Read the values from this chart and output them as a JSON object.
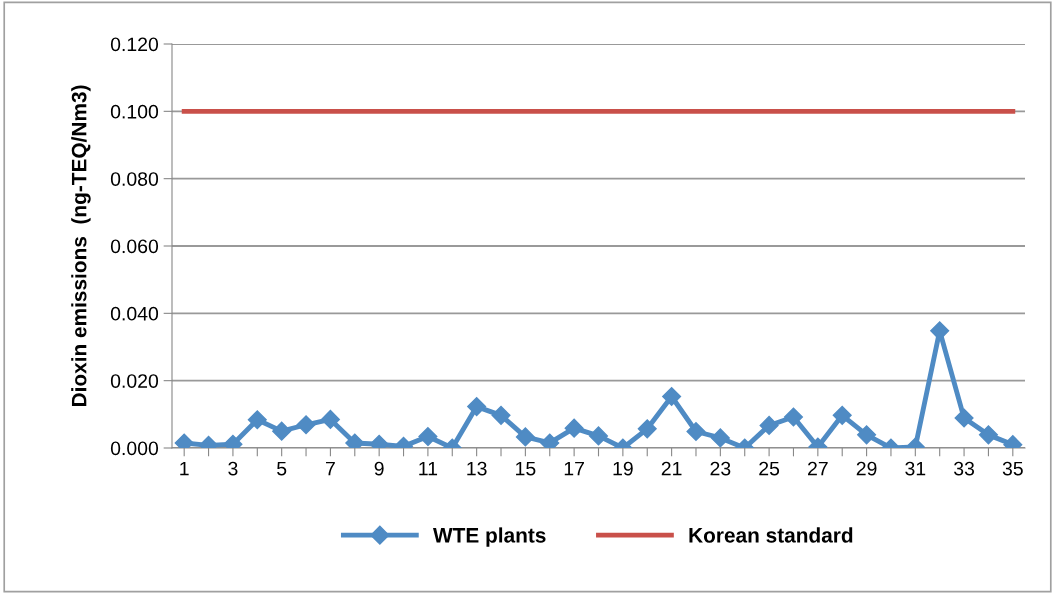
{
  "chart_data": {
    "type": "line",
    "ylabel": "Dioxin emissions  (ng-TEQ/Nm3)",
    "categories": [
      "1",
      null,
      "3",
      null,
      "5",
      null,
      "7",
      null,
      "9",
      null,
      "11",
      null,
      "13",
      null,
      "15",
      null,
      "17",
      null,
      "19",
      null,
      "21",
      null,
      "23",
      null,
      "25",
      null,
      "27",
      null,
      "29",
      null,
      "31",
      null,
      "33",
      null,
      "35"
    ],
    "series": [
      {
        "name": "WTE plants",
        "color": "#4f8bc4",
        "marker": "diamond",
        "values": [
          0.0015,
          0.0008,
          0.0011,
          0.0084,
          0.005,
          0.0069,
          0.0085,
          0.0015,
          0.0011,
          0.0005,
          0.0034,
          0.0,
          0.0123,
          0.0097,
          0.0033,
          0.0015,
          0.0059,
          0.0036,
          0.0,
          0.0057,
          0.0153,
          0.0049,
          0.003,
          0.0,
          0.0067,
          0.0092,
          0.0003,
          0.0097,
          0.0039,
          0.0,
          0.0003,
          0.0348,
          0.0089,
          0.0039,
          0.001
        ]
      },
      {
        "name": "Korean standard",
        "color": "#c9504a",
        "marker": "none",
        "values": [
          0.1,
          0.1,
          0.1,
          0.1,
          0.1,
          0.1,
          0.1,
          0.1,
          0.1,
          0.1,
          0.1,
          0.1,
          0.1,
          0.1,
          0.1,
          0.1,
          0.1,
          0.1,
          0.1,
          0.1,
          0.1,
          0.1,
          0.1,
          0.1,
          0.1,
          0.1,
          0.1,
          0.1,
          0.1,
          0.1,
          0.1,
          0.1,
          0.1,
          0.1,
          0.1
        ]
      }
    ],
    "ylim": [
      0,
      0.12
    ],
    "yticks": [
      {
        "value": 0,
        "label": "0.000"
      },
      {
        "value": 0.02,
        "label": "0.020"
      },
      {
        "value": 0.04,
        "label": "0.040"
      },
      {
        "value": 0.06,
        "label": "0.060"
      },
      {
        "value": 0.08,
        "label": "0.080"
      },
      {
        "value": 0.1,
        "label": "0.100"
      },
      {
        "value": 0.12,
        "label": "0.120"
      }
    ],
    "grid": "y",
    "legend": "bottom",
    "line_style": "solid"
  }
}
